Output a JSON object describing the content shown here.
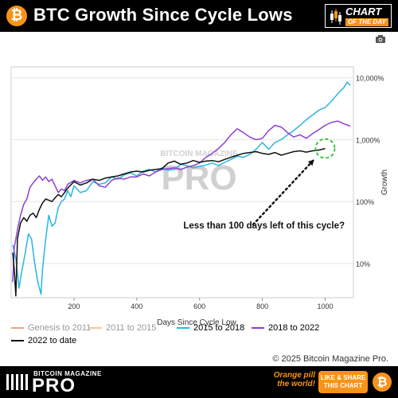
{
  "header": {
    "btc_symbol": "₿",
    "title": "BTC Growth Since Cycle Lows",
    "badge_line1": "CHART",
    "badge_line2": "OF THE DAY"
  },
  "watermark": {
    "line1": "BITCOIN MAGAZINE",
    "line2": "PRO"
  },
  "annotation": "Less than 100 days left of this cycle?",
  "copyright": "© 2025 Bitcoin Magazine Pro.",
  "footer": {
    "brand_small": "BITCOIN MAGAZINE",
    "brand_big": "PRO",
    "tagline": "Orange pill the world!",
    "cta": "LIKE & SHARE THIS CHART",
    "coin_symbol": "₿"
  },
  "colors": {
    "genesis": "#f4a08a",
    "cycle2011": "#f7c98b",
    "cycle2015": "#29b6e0",
    "cycle2018": "#8e3fd1",
    "cycle2022": "#111111",
    "accent": "#f7931a",
    "circle": "#3cc43c"
  },
  "chart_data": {
    "type": "line",
    "xlabel": "Days Since Cycle Low",
    "ylabel": "Growth",
    "x_ticks": [
      200,
      400,
      600,
      800,
      1000
    ],
    "y_ticks": [
      {
        "value": 10,
        "label": "10%"
      },
      {
        "value": 100,
        "label": "100%"
      },
      {
        "value": 1000,
        "label": "1,000%"
      },
      {
        "value": 10000,
        "label": "10,000%"
      }
    ],
    "y_scale": "log",
    "xlim": [
      0,
      1090
    ],
    "ylim": [
      2.8,
      15000
    ],
    "legend": [
      {
        "name": "Genesis to 2011",
        "color": "#f4a08a"
      },
      {
        "name": "2011 to 2015",
        "color": "#f7c98b"
      },
      {
        "name": "2015 to 2018",
        "color": "#29b6e0"
      },
      {
        "name": "2018 to 2022",
        "color": "#8e3fd1"
      },
      {
        "name": "2022 to date",
        "color": "#111111"
      }
    ],
    "series": [
      {
        "name": "2015 to 2018",
        "color": "#29b6e0",
        "points": [
          [
            5,
            20
          ],
          [
            15,
            12
          ],
          [
            25,
            4
          ],
          [
            35,
            8
          ],
          [
            45,
            15
          ],
          [
            55,
            30
          ],
          [
            65,
            25
          ],
          [
            75,
            10
          ],
          [
            85,
            5
          ],
          [
            95,
            3.2
          ],
          [
            100,
            8
          ],
          [
            110,
            25
          ],
          [
            120,
            60
          ],
          [
            130,
            40
          ],
          [
            140,
            45
          ],
          [
            150,
            80
          ],
          [
            160,
            100
          ],
          [
            170,
            110
          ],
          [
            180,
            150
          ],
          [
            190,
            120
          ],
          [
            200,
            180
          ],
          [
            220,
            140
          ],
          [
            240,
            150
          ],
          [
            260,
            210
          ],
          [
            280,
            190
          ],
          [
            300,
            200
          ],
          [
            320,
            250
          ],
          [
            340,
            230
          ],
          [
            360,
            270
          ],
          [
            380,
            290
          ],
          [
            400,
            260
          ],
          [
            420,
            310
          ],
          [
            440,
            330
          ],
          [
            460,
            300
          ],
          [
            480,
            350
          ],
          [
            500,
            320
          ],
          [
            520,
            330
          ],
          [
            540,
            400
          ],
          [
            560,
            380
          ],
          [
            580,
            350
          ],
          [
            600,
            370
          ],
          [
            620,
            390
          ],
          [
            640,
            420
          ],
          [
            660,
            380
          ],
          [
            680,
            430
          ],
          [
            700,
            480
          ],
          [
            720,
            540
          ],
          [
            740,
            520
          ],
          [
            760,
            580
          ],
          [
            780,
            700
          ],
          [
            800,
            900
          ],
          [
            820,
            700
          ],
          [
            840,
            900
          ],
          [
            860,
            1000
          ],
          [
            880,
            1200
          ],
          [
            900,
            1400
          ],
          [
            920,
            1700
          ],
          [
            940,
            2100
          ],
          [
            960,
            2500
          ],
          [
            980,
            3000
          ],
          [
            1000,
            3300
          ],
          [
            1020,
            4200
          ],
          [
            1040,
            5500
          ],
          [
            1060,
            7000
          ],
          [
            1070,
            8500
          ],
          [
            1080,
            7500
          ]
        ]
      },
      {
        "name": "2018 to 2022",
        "color": "#8e3fd1",
        "points": [
          [
            5,
            5
          ],
          [
            10,
            18
          ],
          [
            20,
            35
          ],
          [
            30,
            60
          ],
          [
            40,
            90
          ],
          [
            50,
            110
          ],
          [
            60,
            170
          ],
          [
            70,
            200
          ],
          [
            80,
            230
          ],
          [
            90,
            260
          ],
          [
            100,
            220
          ],
          [
            110,
            250
          ],
          [
            120,
            210
          ],
          [
            130,
            230
          ],
          [
            140,
            180
          ],
          [
            150,
            140
          ],
          [
            160,
            160
          ],
          [
            170,
            150
          ],
          [
            180,
            190
          ],
          [
            200,
            220
          ],
          [
            220,
            200
          ],
          [
            240,
            220
          ],
          [
            260,
            230
          ],
          [
            280,
            180
          ],
          [
            300,
            170
          ],
          [
            320,
            220
          ],
          [
            340,
            240
          ],
          [
            360,
            230
          ],
          [
            380,
            250
          ],
          [
            400,
            250
          ],
          [
            420,
            280
          ],
          [
            440,
            260
          ],
          [
            460,
            300
          ],
          [
            480,
            330
          ],
          [
            500,
            340
          ],
          [
            520,
            350
          ],
          [
            540,
            330
          ],
          [
            560,
            360
          ],
          [
            580,
            380
          ],
          [
            600,
            420
          ],
          [
            620,
            520
          ],
          [
            640,
            600
          ],
          [
            660,
            720
          ],
          [
            680,
            900
          ],
          [
            700,
            1200
          ],
          [
            720,
            1500
          ],
          [
            740,
            1300
          ],
          [
            760,
            1100
          ],
          [
            780,
            1000
          ],
          [
            800,
            1050
          ],
          [
            820,
            1400
          ],
          [
            840,
            1700
          ],
          [
            860,
            1600
          ],
          [
            880,
            1300
          ],
          [
            900,
            1100
          ],
          [
            920,
            1200
          ],
          [
            940,
            1050
          ],
          [
            960,
            1250
          ],
          [
            980,
            1450
          ],
          [
            1000,
            1700
          ],
          [
            1020,
            1900
          ],
          [
            1040,
            2000
          ],
          [
            1060,
            1800
          ],
          [
            1080,
            1650
          ]
        ]
      },
      {
        "name": "2022 to date",
        "color": "#111111",
        "points": [
          [
            5,
            15
          ],
          [
            10,
            8
          ],
          [
            15,
            3
          ],
          [
            20,
            25
          ],
          [
            30,
            45
          ],
          [
            40,
            55
          ],
          [
            50,
            48
          ],
          [
            60,
            60
          ],
          [
            70,
            65
          ],
          [
            80,
            55
          ],
          [
            90,
            75
          ],
          [
            100,
            95
          ],
          [
            110,
            110
          ],
          [
            120,
            105
          ],
          [
            130,
            100
          ],
          [
            140,
            115
          ],
          [
            150,
            130
          ],
          [
            160,
            120
          ],
          [
            170,
            140
          ],
          [
            180,
            165
          ],
          [
            200,
            210
          ],
          [
            220,
            185
          ],
          [
            240,
            200
          ],
          [
            260,
            230
          ],
          [
            280,
            220
          ],
          [
            300,
            240
          ],
          [
            320,
            250
          ],
          [
            340,
            260
          ],
          [
            360,
            280
          ],
          [
            380,
            300
          ],
          [
            400,
            310
          ],
          [
            420,
            300
          ],
          [
            440,
            320
          ],
          [
            460,
            330
          ],
          [
            480,
            340
          ],
          [
            500,
            420
          ],
          [
            520,
            450
          ],
          [
            540,
            400
          ],
          [
            560,
            420
          ],
          [
            580,
            460
          ],
          [
            600,
            430
          ],
          [
            620,
            450
          ],
          [
            640,
            460
          ],
          [
            660,
            440
          ],
          [
            680,
            480
          ],
          [
            700,
            520
          ],
          [
            720,
            560
          ],
          [
            740,
            600
          ],
          [
            760,
            620
          ],
          [
            780,
            640
          ],
          [
            800,
            600
          ],
          [
            820,
            580
          ],
          [
            840,
            620
          ],
          [
            860,
            560
          ],
          [
            880,
            600
          ],
          [
            900,
            640
          ],
          [
            920,
            660
          ],
          [
            940,
            630
          ],
          [
            960,
            660
          ],
          [
            980,
            680
          ],
          [
            1000,
            720
          ]
        ]
      }
    ]
  }
}
